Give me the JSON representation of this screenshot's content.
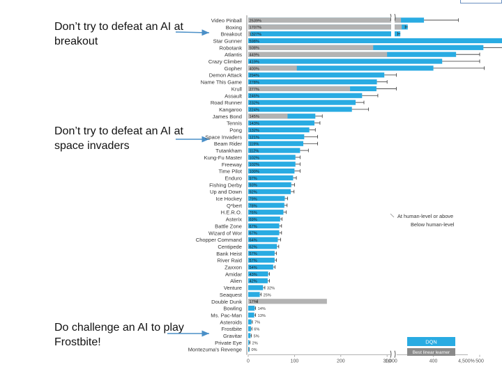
{
  "annotations": {
    "breakout": "Don’t try to defeat an AI at breakout",
    "space_invaders": "Don’t try to defeat an AI at space invaders",
    "frostbite": "Do challenge an AI to play Frostbite!"
  },
  "chart_data": {
    "type": "bar",
    "orientation": "horizontal",
    "xlabel": "",
    "ylabel": "",
    "xlim": [
      0,
      4500
    ],
    "x_axis_break": [
      1000,
      4500
    ],
    "x_ticks": [
      "0",
      "100",
      "200",
      "300",
      "400",
      "500",
      "600",
      "1,000",
      "4,500%"
    ],
    "legend": {
      "at_or_above": "At human-level or above",
      "below": "Below human-level",
      "dqn": "DQN",
      "linear": "Best linear learner"
    },
    "colors": {
      "dqn": "#29abe2",
      "linear": "#b3b3b3",
      "error": "#333333",
      "axis": "#999999"
    },
    "categories": [
      "Video Pinball",
      "Boxing",
      "Breakout",
      "Star Gunner",
      "Robotank",
      "Atlantis",
      "Crazy Climber",
      "Gopher",
      "Demon Attack",
      "Name This Game",
      "Krull",
      "Assault",
      "Road Runner",
      "Kangaroo",
      "James Bond",
      "Tennis",
      "Pong",
      "Space Invaders",
      "Beam Rider",
      "Tutankham",
      "Kung-Fu Master",
      "Freeway",
      "Time Pilot",
      "Enduro",
      "Fishing Derby",
      "Up and Down",
      "Ice Hockey",
      "Q*bert",
      "H.E.R.O.",
      "Asterix",
      "Battle Zone",
      "Wizard of Wor",
      "Chopper Command",
      "Centipede",
      "Bank Heist",
      "River Raid",
      "Zaxxon",
      "Amidar",
      "Alien",
      "Venture",
      "Seaquest",
      "Double Dunk",
      "Bowling",
      "Ms. Pac-Man",
      "Asteroids",
      "Frostbite",
      "Gravitar",
      "Private Eye",
      "Montezuma's Revenge"
    ],
    "series": [
      {
        "name": "DQN",
        "values": [
          2539,
          1707,
          1327,
          598,
          508,
          449,
          419,
          400,
          294,
          278,
          277,
          246,
          232,
          224,
          145,
          143,
          132,
          121,
          119,
          112,
          102,
          102,
          100,
          97,
          93,
          92,
          79,
          78,
          76,
          69,
          67,
          67,
          64,
          62,
          57,
          57,
          54,
          43,
          42,
          32,
          25,
          17,
          14,
          13,
          7,
          6,
          5,
          2,
          0
        ],
        "labels": [
          "2539%",
          "1707%",
          "1327%",
          "598%",
          "508%",
          "449%",
          "419%",
          "400%",
          "294%",
          "278%",
          "277%",
          "246%",
          "232%",
          "224%",
          "145%",
          "143%",
          "132%",
          "121%",
          "119%",
          "112%",
          "102%",
          "102%",
          "100%",
          "97%",
          "93%",
          "92%",
          "79%",
          "78%",
          "76%",
          "69%",
          "67%",
          "67%",
          "64%",
          "62%",
          "57%",
          "57%",
          "54%",
          "43%",
          "42%",
          "32%",
          "25%",
          "17%",
          "14%",
          "13%",
          "7%",
          "6%",
          "5%",
          "2%",
          "0%"
        ],
        "error": [
          4300,
          1580,
          1200,
          660,
          560,
          500,
          500,
          510,
          320,
          300,
          320,
          280,
          250,
          260,
          160,
          155,
          145,
          150,
          150,
          130,
          112,
          112,
          112,
          104,
          100,
          99,
          85,
          84,
          82,
          73,
          72,
          72,
          70,
          66,
          61,
          61,
          58,
          46,
          46,
          36,
          28,
          20,
          16,
          16,
          9,
          8,
          7,
          4,
          2
        ]
      },
      {
        "name": "Best linear learner",
        "values": [
          330,
          1400,
          5,
          0,
          270,
          300,
          0,
          105,
          0,
          0,
          220,
          0,
          0,
          0,
          85,
          0,
          0,
          0,
          0,
          0,
          0,
          0,
          0,
          0,
          0,
          0,
          0,
          0,
          0,
          0,
          0,
          0,
          0,
          0,
          0,
          0,
          0,
          0,
          0,
          0,
          0,
          170,
          0,
          0,
          0,
          0,
          0,
          0,
          0
        ]
      }
    ]
  }
}
